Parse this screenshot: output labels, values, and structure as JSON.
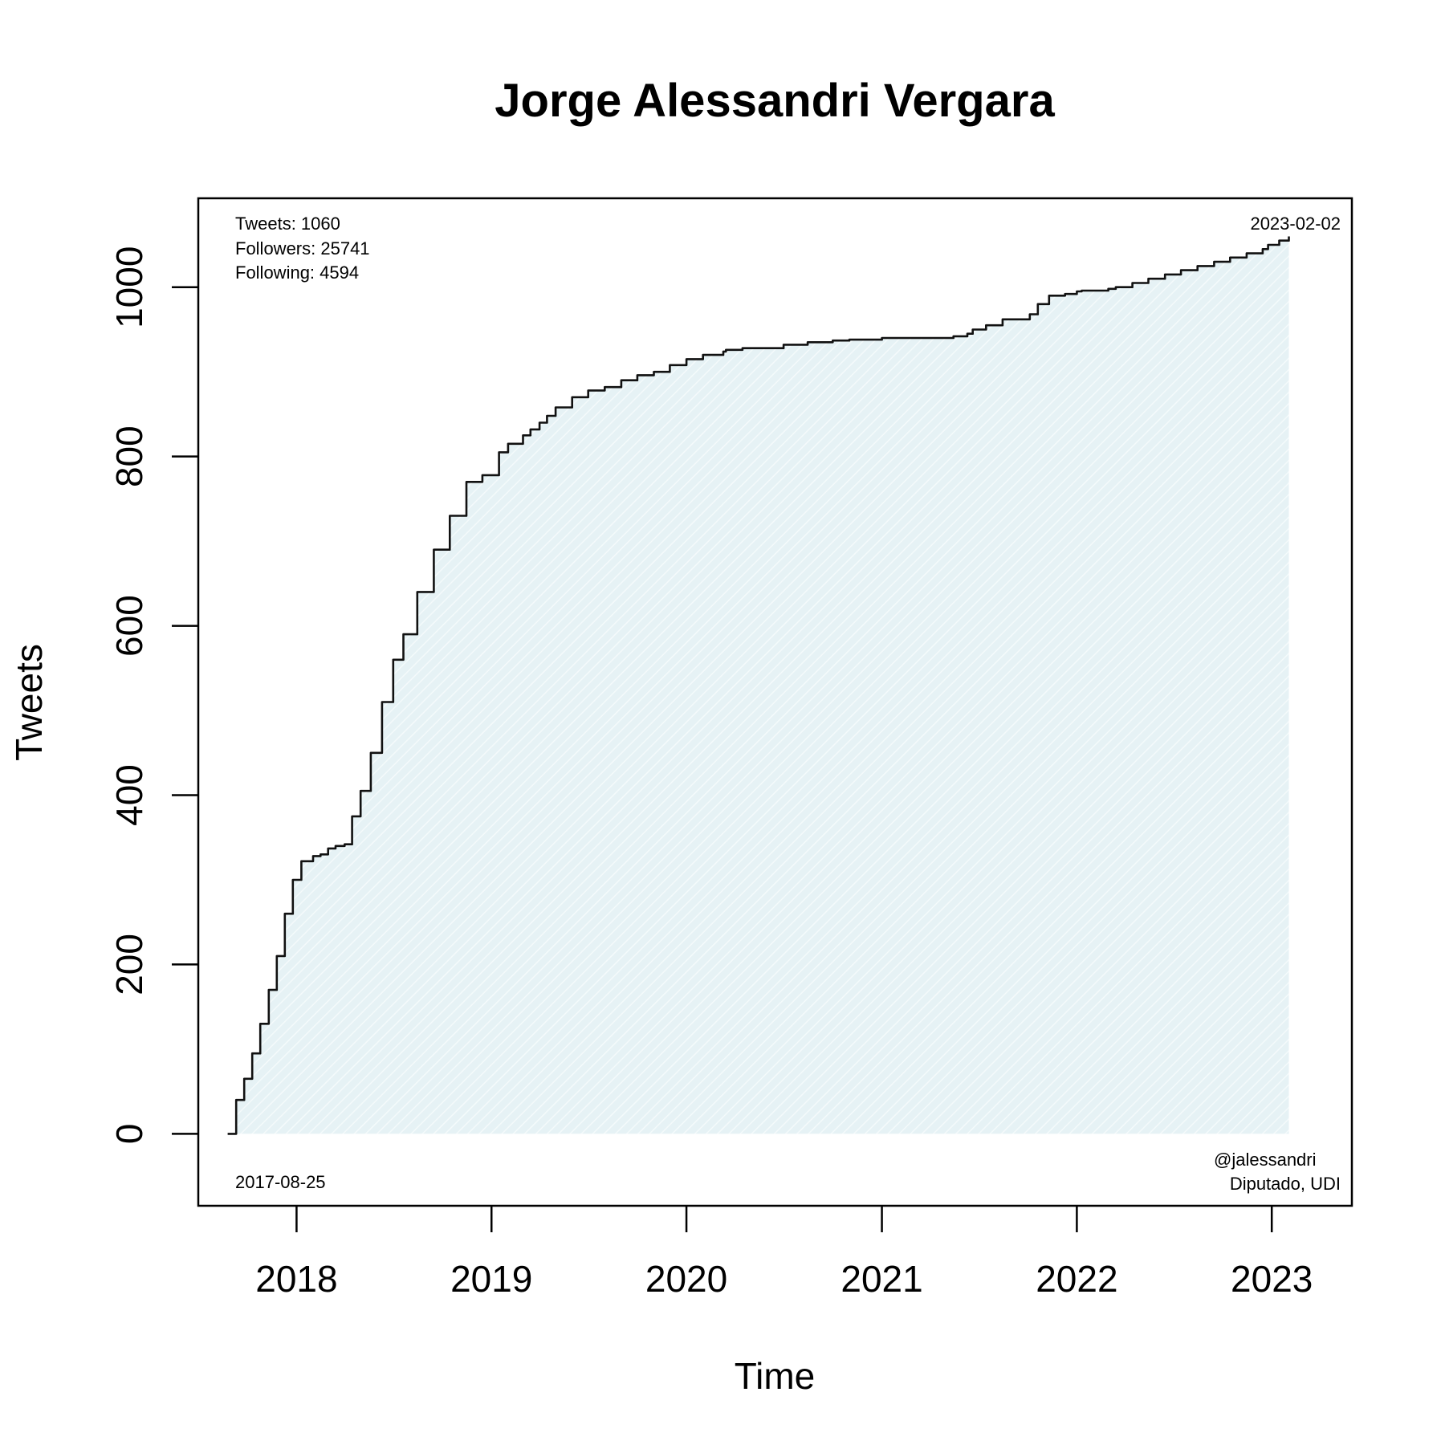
{
  "chart_data": {
    "type": "area",
    "title": "Jorge Alessandri Vergara",
    "xlabel": "Time",
    "ylabel": "Tweets",
    "x_ticks": [
      "2018",
      "2019",
      "2020",
      "2021",
      "2022",
      "2023"
    ],
    "y_ticks": [
      "0",
      "200",
      "400",
      "600",
      "800",
      "1000"
    ],
    "xlim": [
      "2017-07-01",
      "2023-05-31"
    ],
    "ylim": [
      -85,
      1105
    ],
    "grid": false,
    "fill_color": "#e3f1f4",
    "line_color": "#111111",
    "stats": {
      "tweets": "Tweets: 1060",
      "followers": "Followers: 25741",
      "following": "Following: 4594"
    },
    "start_label": "2017-08-25",
    "end_label": "2023-02-02",
    "handle": "@jalessandri",
    "role": "Diputado, UDI",
    "series": [
      {
        "x": [
          "2017-08-25",
          "2017-09-10",
          "2017-09-25",
          "2017-10-10",
          "2017-10-25",
          "2017-11-10",
          "2017-11-25",
          "2017-12-10",
          "2017-12-25",
          "2018-01-10",
          "2018-02-01",
          "2018-02-15",
          "2018-03-01",
          "2018-03-15",
          "2018-04-01",
          "2018-04-15",
          "2018-05-01",
          "2018-05-20",
          "2018-06-10",
          "2018-07-01",
          "2018-07-20",
          "2018-08-15",
          "2018-09-15",
          "2018-10-15",
          "2018-11-15",
          "2018-12-15",
          "2019-01-15",
          "2019-02-01",
          "2019-03-01",
          "2019-03-15",
          "2019-04-01",
          "2019-04-15",
          "2019-05-01",
          "2019-06-01",
          "2019-07-01",
          "2019-08-01",
          "2019-09-01",
          "2019-10-01",
          "2019-11-01",
          "2019-12-01",
          "2020-01-01",
          "2020-02-01",
          "2020-03-10",
          "2020-03-15",
          "2020-04-15",
          "2020-05-15",
          "2020-07-01",
          "2020-08-15",
          "2020-10-01",
          "2020-11-01",
          "2021-01-01",
          "2021-03-01",
          "2021-05-15",
          "2021-06-10",
          "2021-06-20",
          "2021-07-15",
          "2021-08-15",
          "2021-09-20",
          "2021-10-05",
          "2021-10-20",
          "2021-11-10",
          "2021-12-10",
          "2022-01-01",
          "2022-01-10",
          "2022-03-01",
          "2022-03-15",
          "2022-04-15",
          "2022-05-15",
          "2022-06-15",
          "2022-07-15",
          "2022-08-15",
          "2022-09-15",
          "2022-10-15",
          "2022-11-15",
          "2022-12-15",
          "2022-12-25",
          "2023-01-15",
          "2023-02-02"
        ],
        "values": [
          0,
          40,
          65,
          95,
          130,
          170,
          210,
          260,
          300,
          322,
          328,
          330,
          337,
          340,
          342,
          375,
          405,
          450,
          510,
          560,
          590,
          640,
          690,
          730,
          770,
          778,
          805,
          815,
          825,
          832,
          840,
          848,
          858,
          870,
          878,
          882,
          890,
          896,
          900,
          908,
          915,
          920,
          924,
          926,
          928,
          928,
          932,
          935,
          937,
          938,
          940,
          940,
          942,
          945,
          950,
          955,
          962,
          962,
          968,
          980,
          990,
          992,
          995,
          996,
          998,
          1000,
          1005,
          1010,
          1015,
          1020,
          1025,
          1030,
          1035,
          1040,
          1045,
          1050,
          1055,
          1060
        ]
      }
    ]
  }
}
